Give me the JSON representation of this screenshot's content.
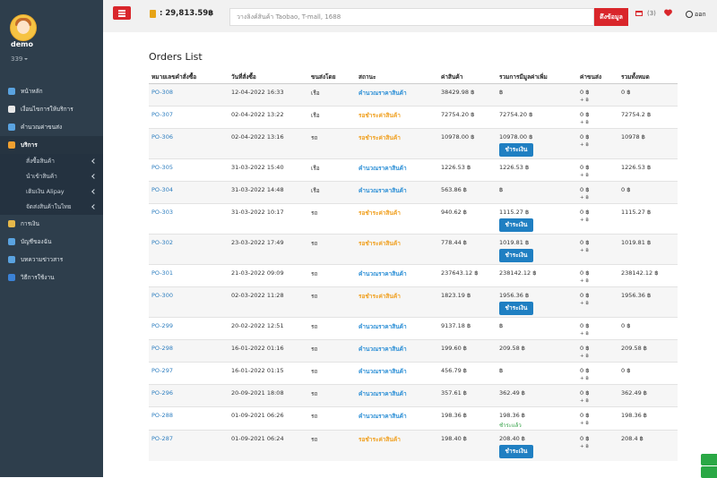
{
  "sidebar": {
    "user": "demo",
    "balance": "339",
    "menu": [
      {
        "label": "หน้าหลัก",
        "icon_color": "#5aa3e0"
      },
      {
        "label": "เงื่อนไขการให้บริการ",
        "icon_color": "#e8e8e8"
      },
      {
        "label": "คำนวณค่าขนส่ง",
        "icon_color": "#5aa3e0"
      },
      {
        "label": "บริการ",
        "icon_color": "#f0a030",
        "active": true,
        "children": [
          "สั่งซื้อสินค้า",
          "นำเข้าสินค้า",
          "เติมเงิน Alipay",
          "จัดส่งสินค้าในไทย"
        ]
      },
      {
        "label": "การเงิน",
        "icon_color": "#e6b84a"
      },
      {
        "label": "บัญชีของฉัน",
        "icon_color": "#5aa3e0"
      },
      {
        "label": "บทความข่าวสาร",
        "icon_color": "#5aa3e0"
      },
      {
        "label": "วิธีการใช้งาน",
        "icon_color": "#3b82d6"
      }
    ]
  },
  "topbar": {
    "wallet": ": 29,813.59฿",
    "search_placeholder": "วางลิงค์สินค้า Taobao, T-mall, 1688",
    "fetch_button": "ดึงข้อมูล",
    "cart_count": "(3)",
    "logout": "ออก"
  },
  "orders": {
    "title": "Orders List",
    "headers": [
      "หมายเลขคำสั่งซื้อ",
      "วันที่สั่งซื้อ",
      "ขนส่งโดย",
      "สถานะ",
      "ค่าสินค้า",
      "รวมการมีมูลค่าเพิ่ม",
      "ค่าขนส่ง",
      "รวมทั้งหมด"
    ],
    "rows": [
      {
        "id": "PO-308",
        "date": "12-04-2022 16:33",
        "transport": "เรือ",
        "status": "คำนวณราคาสินค้า",
        "status_color": "#2c8fd6",
        "price": "38429.98 ฿",
        "subtotal": "฿",
        "shipping": "0 ฿",
        "shipping_extra": "+ ฿",
        "total": "0 ฿"
      },
      {
        "id": "PO-307",
        "date": "02-04-2022 13:22",
        "transport": "เรือ",
        "status": "รอชำระค่าสินค้า",
        "status_color": "#f0a020",
        "price": "72754.20 ฿",
        "subtotal": "72754.20 ฿",
        "shipping": "0 ฿",
        "shipping_extra": "+ ฿",
        "total": "72754.2 ฿"
      },
      {
        "id": "PO-306",
        "date": "02-04-2022 13:16",
        "transport": "รถ",
        "status": "รอชำระค่าสินค้า",
        "status_color": "#f0a020",
        "price": "10978.00 ฿",
        "subtotal": "10978.00 ฿",
        "action": "ชำระเงิน",
        "shipping": "0 ฿",
        "shipping_extra": "+ ฿",
        "total": "10978 ฿"
      },
      {
        "id": "PO-305",
        "date": "31-03-2022 15:40",
        "transport": "เรือ",
        "status": "คำนวณราคาสินค้า",
        "status_color": "#2c8fd6",
        "price": "1226.53 ฿",
        "subtotal": "1226.53 ฿",
        "shipping": "0 ฿",
        "shipping_extra": "+ ฿",
        "total": "1226.53 ฿"
      },
      {
        "id": "PO-304",
        "date": "31-03-2022 14:48",
        "transport": "เรือ",
        "status": "คำนวณราคาสินค้า",
        "status_color": "#2c8fd6",
        "price": "563.86 ฿",
        "subtotal": "฿",
        "shipping": "0 ฿",
        "shipping_extra": "+ ฿",
        "total": "0 ฿"
      },
      {
        "id": "PO-303",
        "date": "31-03-2022 10:17",
        "transport": "รถ",
        "status": "รอชำระค่าสินค้า",
        "status_color": "#f0a020",
        "price": "940.62 ฿",
        "subtotal": "1115.27 ฿",
        "action": "ชำระเงิน",
        "shipping": "0 ฿",
        "shipping_extra": "+ ฿",
        "total": "1115.27 ฿"
      },
      {
        "id": "PO-302",
        "date": "23-03-2022 17:49",
        "transport": "รถ",
        "status": "รอชำระค่าสินค้า",
        "status_color": "#f0a020",
        "price": "778.44 ฿",
        "subtotal": "1019.81 ฿",
        "action": "ชำระเงิน",
        "shipping": "0 ฿",
        "shipping_extra": "+ ฿",
        "total": "1019.81 ฿"
      },
      {
        "id": "PO-301",
        "date": "21-03-2022 09:09",
        "transport": "รถ",
        "status": "คำนวณราคาสินค้า",
        "status_color": "#2c8fd6",
        "price": "237643.12 ฿",
        "subtotal": "238142.12 ฿",
        "shipping": "0 ฿",
        "shipping_extra": "+ ฿",
        "total": "238142.12 ฿"
      },
      {
        "id": "PO-300",
        "date": "02-03-2022 11:28",
        "transport": "รถ",
        "status": "รอชำระค่าสินค้า",
        "status_color": "#f0a020",
        "price": "1823.19 ฿",
        "subtotal": "1956.36 ฿",
        "action": "ชำระเงิน",
        "shipping": "0 ฿",
        "shipping_extra": "+ ฿",
        "total": "1956.36 ฿"
      },
      {
        "id": "PO-299",
        "date": "20-02-2022 12:51",
        "transport": "รถ",
        "status": "คำนวณราคาสินค้า",
        "status_color": "#2c8fd6",
        "price": "9137.18 ฿",
        "subtotal": "฿",
        "shipping": "0 ฿",
        "shipping_extra": "+ ฿",
        "total": "0 ฿"
      },
      {
        "id": "PO-298",
        "date": "16-01-2022 01:16",
        "transport": "รถ",
        "status": "คำนวณราคาสินค้า",
        "status_color": "#2c8fd6",
        "price": "199.60 ฿",
        "subtotal": "209.58 ฿",
        "shipping": "0 ฿",
        "shipping_extra": "+ ฿",
        "total": "209.58 ฿"
      },
      {
        "id": "PO-297",
        "date": "16-01-2022 01:15",
        "transport": "รถ",
        "status": "คำนวณราคาสินค้า",
        "status_color": "#2c8fd6",
        "price": "456.79 ฿",
        "subtotal": "฿",
        "shipping": "0 ฿",
        "shipping_extra": "+ ฿",
        "total": "0 ฿"
      },
      {
        "id": "PO-296",
        "date": "20-09-2021 18:08",
        "transport": "รถ",
        "status": "คำนวณราคาสินค้า",
        "status_color": "#2c8fd6",
        "price": "357.61 ฿",
        "subtotal": "362.49 ฿",
        "shipping": "0 ฿",
        "shipping_extra": "+ ฿",
        "total": "362.49 ฿"
      },
      {
        "id": "PO-288",
        "date": "01-09-2021 06:26",
        "transport": "รถ",
        "status": "คำนวณราคาสินค้า",
        "status_color": "#2c8fd6",
        "price": "198.36 ฿",
        "subtotal": "198.36 ฿",
        "paid_note": "ชำระแล้ว",
        "shipping": "0 ฿",
        "shipping_extra": "+ ฿",
        "total": "198.36 ฿"
      },
      {
        "id": "PO-287",
        "date": "01-09-2021 06:24",
        "transport": "รถ",
        "status": "รอชำระค่าสินค้า",
        "status_color": "#f0a020",
        "price": "198.40 ฿",
        "subtotal": "208.40 ฿",
        "action": "ชำระเงิน",
        "shipping": "0 ฿",
        "shipping_extra": "+ ฿",
        "total": "208.4 ฿"
      }
    ]
  }
}
